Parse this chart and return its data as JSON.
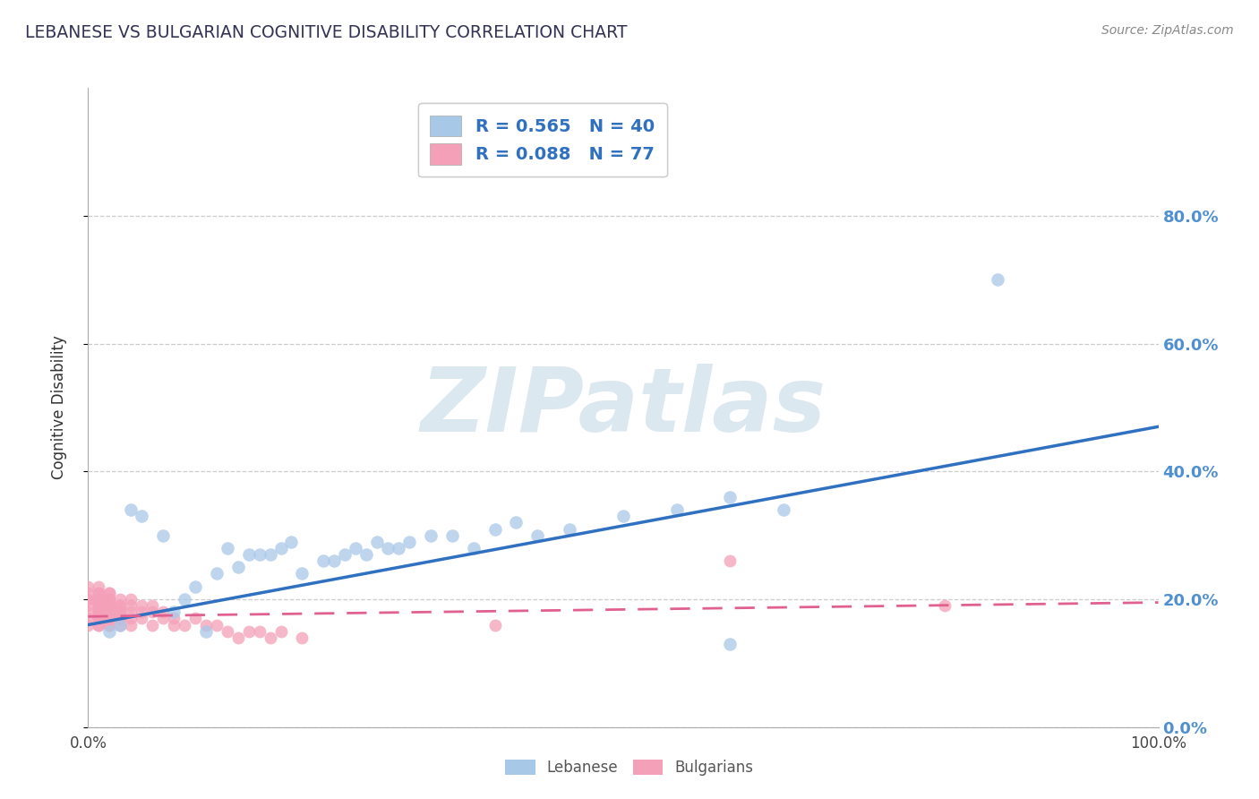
{
  "title": "LEBANESE VS BULGARIAN COGNITIVE DISABILITY CORRELATION CHART",
  "source": "Source: ZipAtlas.com",
  "ylabel": "Cognitive Disability",
  "xlim": [
    0.0,
    1.0
  ],
  "ylim": [
    0.0,
    1.0
  ],
  "ytick_vals": [
    0.0,
    0.2,
    0.4,
    0.6,
    0.8
  ],
  "legend_R1": "R = 0.565",
  "legend_N1": "N = 40",
  "legend_R2": "R = 0.088",
  "legend_N2": "N = 77",
  "blue_scatter_color": "#a8c8e8",
  "pink_scatter_color": "#f4a0b8",
  "blue_line_color": "#3070c0",
  "pink_line_color": "#e06090",
  "watermark": "ZIPatlas",
  "watermark_color": "#dce8f0",
  "background_color": "#ffffff",
  "grid_color": "#cccccc",
  "right_tick_color": "#5090d0",
  "Lebanese_x": [
    0.02,
    0.03,
    0.04,
    0.05,
    0.07,
    0.08,
    0.09,
    0.1,
    0.11,
    0.12,
    0.13,
    0.14,
    0.15,
    0.16,
    0.17,
    0.18,
    0.19,
    0.2,
    0.22,
    0.23,
    0.24,
    0.25,
    0.26,
    0.27,
    0.28,
    0.29,
    0.3,
    0.32,
    0.34,
    0.36,
    0.38,
    0.4,
    0.42,
    0.45,
    0.5,
    0.55,
    0.6,
    0.65,
    0.6,
    0.85
  ],
  "Lebanese_y": [
    0.15,
    0.16,
    0.34,
    0.33,
    0.3,
    0.18,
    0.2,
    0.22,
    0.15,
    0.24,
    0.28,
    0.25,
    0.27,
    0.27,
    0.27,
    0.28,
    0.29,
    0.24,
    0.26,
    0.26,
    0.27,
    0.28,
    0.27,
    0.29,
    0.28,
    0.28,
    0.29,
    0.3,
    0.3,
    0.28,
    0.31,
    0.32,
    0.3,
    0.31,
    0.33,
    0.34,
    0.36,
    0.34,
    0.13,
    0.7
  ],
  "Bulgarian_x": [
    0.0,
    0.0,
    0.0,
    0.0,
    0.0,
    0.0,
    0.0,
    0.0,
    0.01,
    0.01,
    0.01,
    0.01,
    0.01,
    0.01,
    0.01,
    0.01,
    0.01,
    0.01,
    0.01,
    0.01,
    0.01,
    0.01,
    0.01,
    0.01,
    0.01,
    0.01,
    0.01,
    0.02,
    0.02,
    0.02,
    0.02,
    0.02,
    0.02,
    0.02,
    0.02,
    0.02,
    0.02,
    0.02,
    0.02,
    0.02,
    0.03,
    0.03,
    0.03,
    0.03,
    0.03,
    0.03,
    0.03,
    0.03,
    0.04,
    0.04,
    0.04,
    0.04,
    0.04,
    0.05,
    0.05,
    0.05,
    0.06,
    0.06,
    0.06,
    0.07,
    0.07,
    0.08,
    0.08,
    0.09,
    0.1,
    0.11,
    0.12,
    0.13,
    0.14,
    0.15,
    0.16,
    0.17,
    0.18,
    0.2,
    0.38,
    0.6,
    0.8
  ],
  "Bulgarian_y": [
    0.2,
    0.21,
    0.22,
    0.18,
    0.19,
    0.17,
    0.16,
    0.2,
    0.18,
    0.19,
    0.2,
    0.17,
    0.21,
    0.16,
    0.19,
    0.22,
    0.18,
    0.2,
    0.17,
    0.19,
    0.16,
    0.21,
    0.18,
    0.2,
    0.17,
    0.19,
    0.2,
    0.19,
    0.2,
    0.18,
    0.17,
    0.19,
    0.21,
    0.16,
    0.2,
    0.18,
    0.17,
    0.19,
    0.16,
    0.21,
    0.19,
    0.18,
    0.2,
    0.17,
    0.16,
    0.19,
    0.18,
    0.17,
    0.19,
    0.18,
    0.17,
    0.2,
    0.16,
    0.19,
    0.18,
    0.17,
    0.18,
    0.19,
    0.16,
    0.17,
    0.18,
    0.16,
    0.17,
    0.16,
    0.17,
    0.16,
    0.16,
    0.15,
    0.14,
    0.15,
    0.15,
    0.14,
    0.15,
    0.14,
    0.16,
    0.26,
    0.19
  ],
  "blue_line_x": [
    0.0,
    1.0
  ],
  "blue_line_y": [
    0.16,
    0.47
  ],
  "pink_line_x": [
    0.0,
    1.0
  ],
  "pink_line_y": [
    0.173,
    0.195
  ]
}
